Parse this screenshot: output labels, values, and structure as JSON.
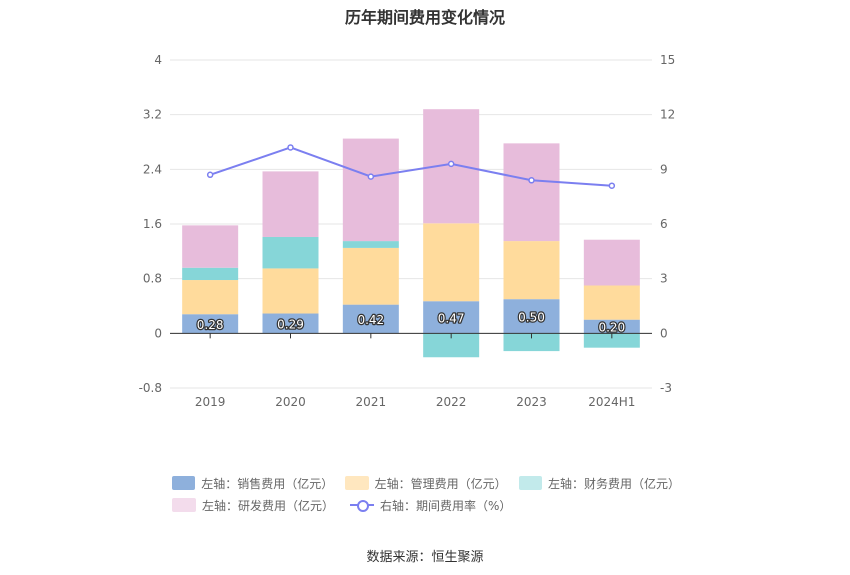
{
  "chart_data": {
    "type": "bar",
    "title": "历年期间费用变化情况",
    "categories": [
      "2019",
      "2020",
      "2021",
      "2022",
      "2023",
      "2024H1"
    ],
    "left_axis": {
      "ylim": [
        -0.8,
        4
      ],
      "ticks": [
        "4",
        "3.2",
        "2.4",
        "1.6",
        "0.8",
        "0",
        "-0.8"
      ]
    },
    "right_axis": {
      "ylim": [
        -3,
        15
      ],
      "ticks": [
        "15",
        "12",
        "9",
        "6",
        "3",
        "0",
        "-3"
      ]
    },
    "series": [
      {
        "name": "左轴：销售费用（亿元）",
        "axis": "left",
        "stack": true,
        "color": "#8eb0dc",
        "values": [
          0.28,
          0.29,
          0.42,
          0.47,
          0.5,
          0.2
        ],
        "labels": [
          "0.28",
          "0.29",
          "0.42",
          "0.47",
          "0.50",
          "0.20"
        ]
      },
      {
        "name": "左轴：管理费用（亿元）",
        "axis": "left",
        "stack": true,
        "color": "#ffdb9c",
        "values": [
          0.5,
          0.66,
          0.83,
          1.14,
          0.85,
          0.5
        ]
      },
      {
        "name": "左轴：财务费用（亿元）",
        "axis": "left",
        "stack": true,
        "color": "#86d6d8",
        "values": [
          0.18,
          0.46,
          0.1,
          -0.35,
          -0.26,
          -0.21
        ]
      },
      {
        "name": "左轴：研发费用（亿元）",
        "axis": "left",
        "stack": true,
        "color": "#e7bcdb",
        "values": [
          0.62,
          0.96,
          1.5,
          1.67,
          1.43,
          0.67
        ]
      },
      {
        "name": "右轴：期间费用率（%）",
        "axis": "right",
        "type": "line",
        "color": "#7b7ff0",
        "values": [
          8.7,
          10.2,
          8.6,
          9.3,
          8.4,
          8.1
        ]
      }
    ],
    "grid": true,
    "legend_position": "bottom"
  },
  "source": "数据来源：恒生聚源"
}
